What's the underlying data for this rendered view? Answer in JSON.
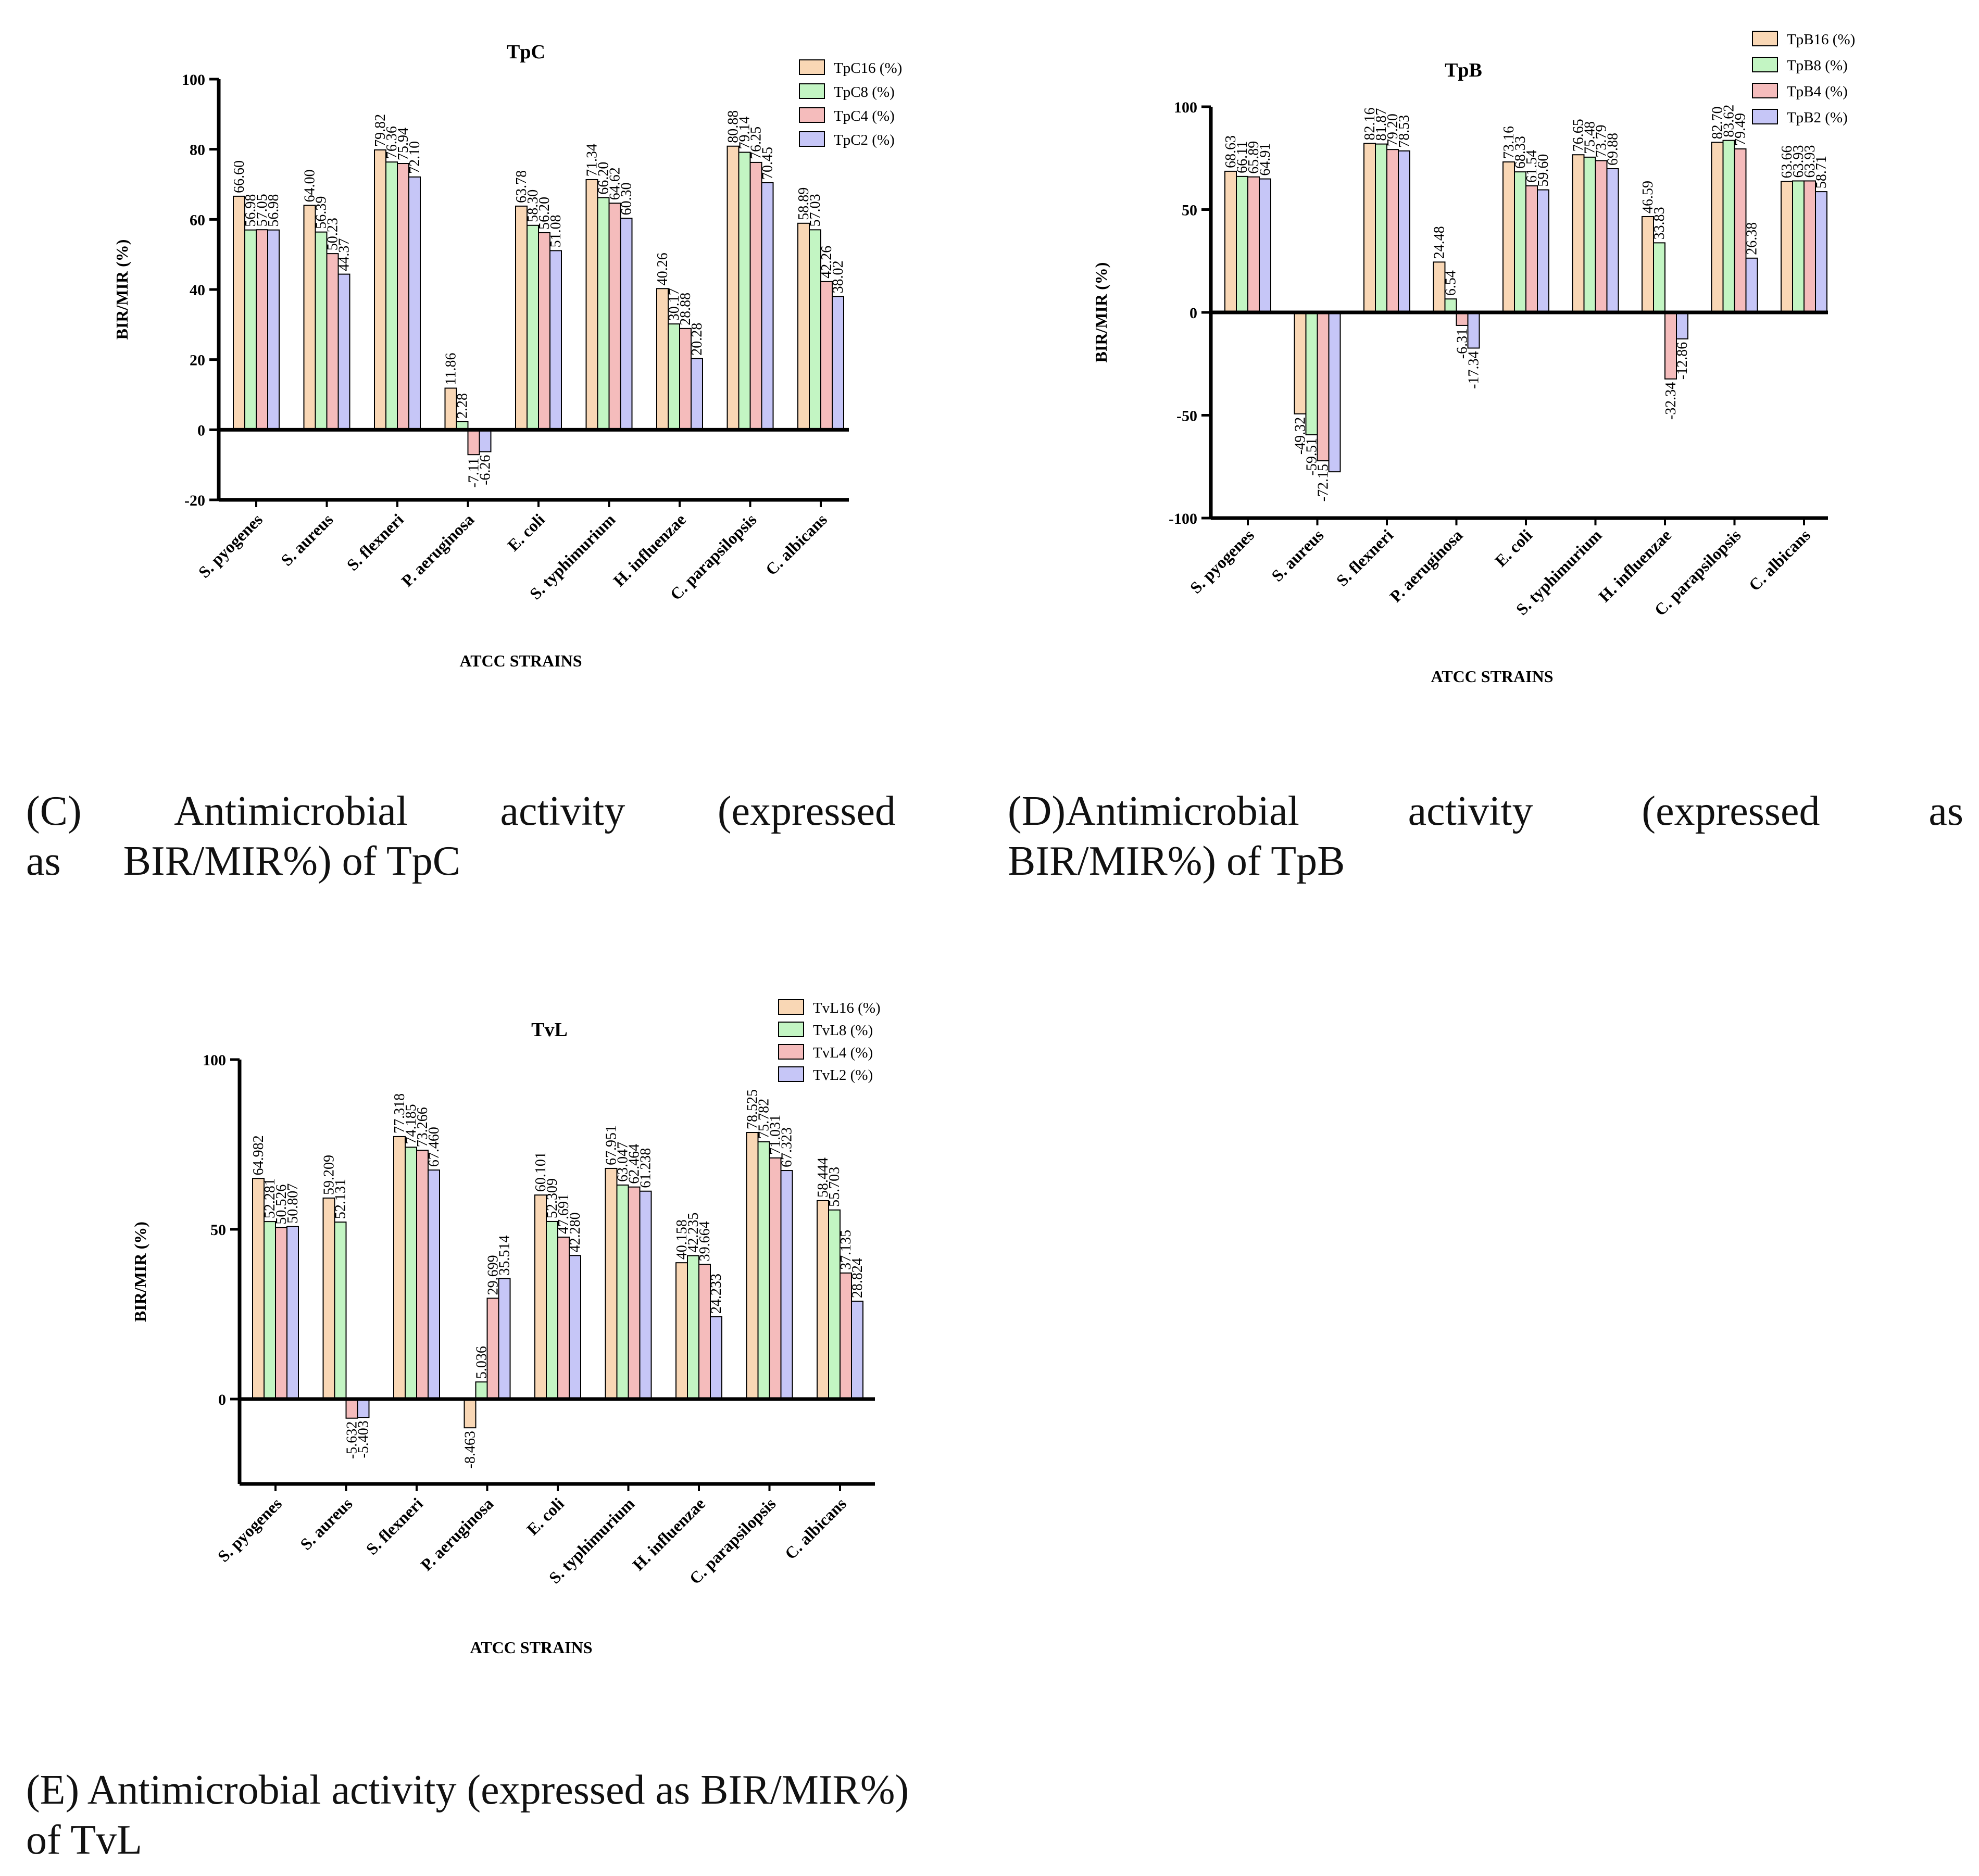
{
  "colors": {
    "c16": "#f9d7b5",
    "c8": "#c3f5c3",
    "c4": "#f5bcbc",
    "c2": "#c6c6f7",
    "stroke": "#000000"
  },
  "captions": {
    "c": {
      "parts": [
        "(C)",
        "Antimicrobial",
        "activity",
        "(expressed"
      ],
      "line2": "as      BIR/MIR%) of TpC"
    },
    "d": {
      "parts": [
        "(D)Antimicrobial",
        "activity",
        "(expressed",
        "as"
      ],
      "line2": "BIR/MIR%) of TpB"
    },
    "e": {
      "line1": "(E) Antimicrobial activity (expressed as BIR/MIR%)",
      "line2": "of TvL"
    }
  },
  "chart_data": [
    {
      "id": "tpc",
      "type": "bar",
      "title": "TpC",
      "xlabel": "ATCC STRAINS",
      "ylabel": "BIR/MIR (%)",
      "ylim": [
        -20,
        100
      ],
      "yticks": [
        -20,
        0,
        20,
        40,
        60,
        80,
        100
      ],
      "categories": [
        "S. pyogenes",
        "S. aureus",
        "S. flexneri",
        "P. aeruginosa",
        "E. coli",
        "S. typhimurium",
        "H. influenzae",
        "C. parapsilopsis",
        "C. albicans"
      ],
      "series": [
        {
          "name": "TpC16 (%)",
          "values": [
            66.6,
            64.0,
            79.82,
            11.86,
            63.78,
            71.34,
            40.26,
            80.88,
            58.89
          ],
          "labels": [
            "66.60",
            "64.00",
            "79.82",
            "11.86",
            "63.78",
            "71.34",
            "40.26",
            "80.88",
            "58.89"
          ]
        },
        {
          "name": "TpC8 (%)",
          "values": [
            56.98,
            56.39,
            76.36,
            2.28,
            58.3,
            66.2,
            30.17,
            79.14,
            57.03
          ],
          "labels": [
            "56.98",
            "56.39",
            "76.36",
            "2.28",
            "58.30",
            "66.20",
            "30.17",
            "79.14",
            "57.03"
          ]
        },
        {
          "name": "TpC4 (%)",
          "values": [
            57.05,
            50.23,
            75.94,
            -7.11,
            56.2,
            64.62,
            28.88,
            76.25,
            42.26
          ],
          "labels": [
            "57.05",
            "50.23",
            "75.94",
            "-7.11",
            "56.20",
            "64.62",
            "28.88",
            "76.25",
            "42.26"
          ]
        },
        {
          "name": "TpC2 (%)",
          "values": [
            56.98,
            44.37,
            72.1,
            -6.26,
            51.08,
            60.3,
            20.28,
            70.45,
            38.02
          ],
          "labels": [
            "56.98",
            "44.37",
            "72.10",
            "-6.26",
            "51.08",
            "60.30",
            "20.28",
            "70.45",
            "38.02"
          ]
        }
      ],
      "legend": "top-right"
    },
    {
      "id": "tpb",
      "type": "bar",
      "title": "TpB",
      "xlabel": "ATCC STRAINS",
      "ylabel": "BIR/MIR (%)",
      "ylim": [
        -100,
        100
      ],
      "yticks": [
        -100,
        -50,
        0,
        50,
        100
      ],
      "categories": [
        "S. pyogenes",
        "S. aureus",
        "S. flexneri",
        "P. aeruginosa",
        "E. coli",
        "S. typhimurium",
        "H. influenzae",
        "C. parapsilopsis",
        "C. albicans"
      ],
      "series": [
        {
          "name": "TpB16 (%)",
          "values": [
            68.63,
            -49.32,
            82.16,
            24.48,
            73.16,
            76.65,
            46.59,
            82.7,
            63.66
          ],
          "labels": [
            "68.63",
            "-49.32",
            "82.16",
            "24.48",
            "73.16",
            "76.65",
            "46.59",
            "82.70",
            "63.66"
          ]
        },
        {
          "name": "TpB8 (%)",
          "values": [
            66.11,
            -59.51,
            81.87,
            6.54,
            68.33,
            75.48,
            33.83,
            83.62,
            63.93
          ],
          "labels": [
            "66.11",
            "-59.51",
            "81.87",
            "6.54",
            "68.33",
            "75.48",
            "33.83",
            "83.62",
            "63.93"
          ]
        },
        {
          "name": "TpB4 (%)",
          "values": [
            65.89,
            -72.15,
            79.2,
            -6.31,
            61.54,
            73.79,
            -32.34,
            79.49,
            63.93
          ],
          "labels": [
            "65.89",
            "-72.15",
            "79.20",
            "-6.31",
            "61.54",
            "73.79",
            "-32.34",
            "79.49",
            "63.93"
          ]
        },
        {
          "name": "TpB2 (%)",
          "values": [
            64.91,
            -77.5,
            78.53,
            -17.34,
            59.6,
            69.88,
            -12.86,
            26.38,
            58.71
          ],
          "labels": [
            "64.91",
            "",
            "78.53",
            "-17.34",
            "59.60",
            "69.88",
            "-12.86",
            "26.38",
            "58.71"
          ]
        }
      ],
      "legend": "top-right"
    },
    {
      "id": "tvl",
      "type": "bar",
      "title": "TvL",
      "xlabel": "ATCC STRAINS",
      "ylabel": "BIR/MIR (%)",
      "ylim": [
        -25,
        100
      ],
      "yticks": [
        0,
        50,
        100
      ],
      "categories": [
        "S. pyogenes",
        "S. aureus",
        "S. flexneri",
        "P. aeruginosa",
        "E. coli",
        "S. typhimurium",
        "H. influenzae",
        "C. parapsilopsis",
        "C. albicans"
      ],
      "series": [
        {
          "name": "TvL16 (%)",
          "values": [
            64.982,
            59.209,
            77.318,
            -8.463,
            60.101,
            67.951,
            40.158,
            78.525,
            58.444
          ],
          "labels": [
            "64.982",
            "59.209",
            "77.318",
            "-8.463",
            "60.101",
            "67.951",
            "40.158",
            "78.525",
            "58.444"
          ]
        },
        {
          "name": "TvL8 (%)",
          "values": [
            52.281,
            52.131,
            74.185,
            5.036,
            52.309,
            63.047,
            42.235,
            75.782,
            55.703
          ],
          "labels": [
            "52.281",
            "52.131",
            "74.185",
            "5.036",
            "52.309",
            "63.047",
            "42.235",
            "75.782",
            "55.703"
          ]
        },
        {
          "name": "TvL4 (%)",
          "values": [
            50.526,
            -5.632,
            73.266,
            29.699,
            47.691,
            62.464,
            39.664,
            71.031,
            37.135
          ],
          "labels": [
            "50.526",
            "-5.632",
            "73.266",
            "29.699",
            "47.691",
            "62.464",
            "39.664",
            "71.031",
            "37.135"
          ]
        },
        {
          "name": "TvL2 (%)",
          "values": [
            50.807,
            -5.403,
            67.46,
            35.514,
            42.28,
            61.238,
            24.233,
            67.323,
            28.824
          ],
          "labels": [
            "50.807",
            "-5.403",
            "67.460",
            "35.514",
            "42.280",
            "61.238",
            "24.233",
            "67.323",
            "28.824"
          ]
        }
      ],
      "legend": "top-right"
    }
  ]
}
